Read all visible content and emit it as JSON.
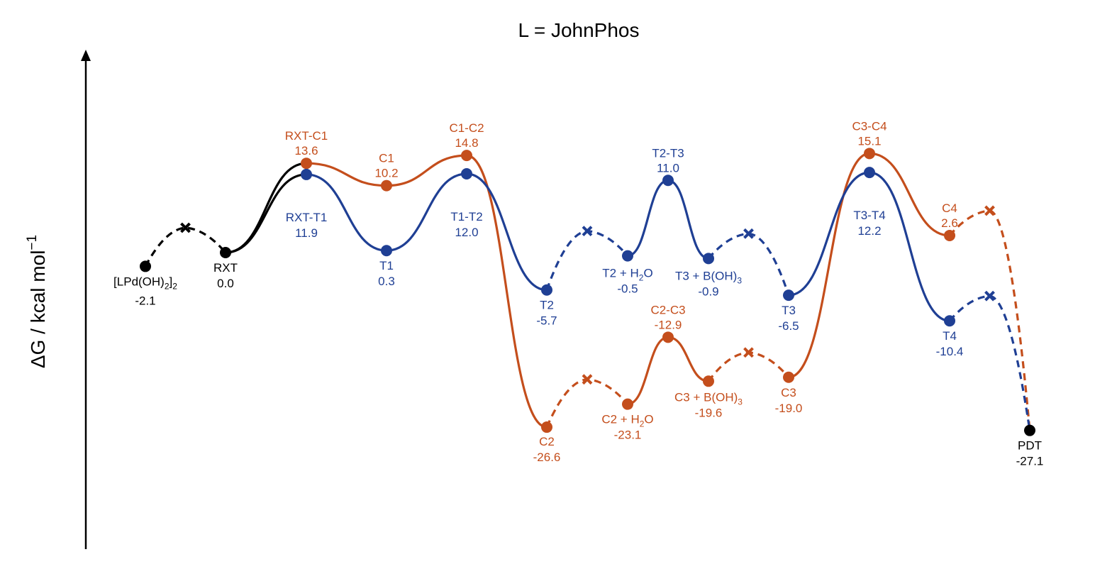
{
  "chart_data": {
    "type": "line",
    "title": "L = JohnPhos",
    "ylabel": "ΔG / kcal mol",
    "ylabel_superscript": "−1",
    "colors": {
      "common": "#000000",
      "C": "#c44e1c",
      "T": "#1f3f94"
    },
    "series": [
      {
        "id": "common",
        "color": "#000000",
        "points": [
          {
            "key": "LPdOH",
            "label": "[LPd(OH)",
            "label_sub": "2",
            "label_tail": "]",
            "label_sub2": "2",
            "value": -2.1,
            "value_label": "-2.1"
          },
          {
            "key": "RXT",
            "label": "RXT",
            "value": 0.0,
            "value_label": "0.0"
          },
          {
            "key": "PDT",
            "label": "PDT",
            "value": -27.1,
            "value_label": "-27.1"
          }
        ]
      },
      {
        "id": "C",
        "color": "#c44e1c",
        "points": [
          {
            "key": "RXT-C1",
            "label": "RXT-C1",
            "value": 13.6,
            "value_label": "13.6"
          },
          {
            "key": "C1",
            "label": "C1",
            "value": 10.2,
            "value_label": "10.2"
          },
          {
            "key": "C1-C2",
            "label": "C1-C2",
            "value": 14.8,
            "value_label": "14.8"
          },
          {
            "key": "C2",
            "label": "C2",
            "value": -26.6,
            "value_label": "-26.6"
          },
          {
            "key": "C2+H2O",
            "label": "C2 + H",
            "label_sub": "2",
            "label_tail": "O",
            "value": -23.1,
            "value_label": "-23.1"
          },
          {
            "key": "C2-C3",
            "label": "C2-C3",
            "value": -12.9,
            "value_label": "-12.9"
          },
          {
            "key": "C3+BOH3",
            "label": "C3 + B(OH)",
            "label_sub": "3",
            "value": -19.6,
            "value_label": "-19.6"
          },
          {
            "key": "C3",
            "label": "C3",
            "value": -19.0,
            "value_label": "-19.0"
          },
          {
            "key": "C3-C4",
            "label": "C3-C4",
            "value": 15.1,
            "value_label": "15.1"
          },
          {
            "key": "C4",
            "label": "C4",
            "value": 2.6,
            "value_label": "2.6"
          }
        ]
      },
      {
        "id": "T",
        "color": "#1f3f94",
        "points": [
          {
            "key": "RXT-T1",
            "label": "RXT-T1",
            "value": 11.9,
            "value_label": "11.9"
          },
          {
            "key": "T1",
            "label": "T1",
            "value": 0.3,
            "value_label": "0.3"
          },
          {
            "key": "T1-T2",
            "label": "T1-T2",
            "value": 12.0,
            "value_label": "12.0"
          },
          {
            "key": "T2",
            "label": "T2",
            "value": -5.7,
            "value_label": "-5.7"
          },
          {
            "key": "T2+H2O",
            "label": "T2 + H",
            "label_sub": "2",
            "label_tail": "O",
            "value": -0.5,
            "value_label": "-0.5"
          },
          {
            "key": "T2-T3",
            "label": "T2-T3",
            "value": 11.0,
            "value_label": "11.0"
          },
          {
            "key": "T3+BOH3",
            "label": "T3 + B(OH)",
            "label_sub": "3",
            "value": -0.9,
            "value_label": "-0.9"
          },
          {
            "key": "T3",
            "label": "T3",
            "value": -6.5,
            "value_label": "-6.5"
          },
          {
            "key": "T3-T4",
            "label": "T3-T4",
            "value": 12.2,
            "value_label": "12.2"
          },
          {
            "key": "T4",
            "label": "T4",
            "value": -10.4,
            "value_label": "-10.4"
          }
        ]
      }
    ],
    "connectors": [
      {
        "color": "#000000",
        "from": "LPdOH",
        "to": "RXT",
        "style": "dashed",
        "marker": "x"
      },
      {
        "color": "#000000",
        "from": "RXT",
        "to": "RXT-C1",
        "style": "solid"
      },
      {
        "color": "#000000",
        "from": "RXT",
        "to": "RXT-T1",
        "style": "solid"
      },
      {
        "color": "#c44e1c",
        "from": "C2",
        "to": "C2+H2O",
        "style": "dashed",
        "marker": "x"
      },
      {
        "color": "#c44e1c",
        "from": "C3+BOH3",
        "to": "C3",
        "style": "dashed",
        "marker": "x"
      },
      {
        "color": "#c44e1c",
        "from": "C4",
        "to": "PDT",
        "style": "dashed",
        "marker": "x"
      },
      {
        "color": "#1f3f94",
        "from": "T2",
        "to": "T2+H2O",
        "style": "dashed",
        "marker": "x"
      },
      {
        "color": "#1f3f94",
        "from": "T3+BOH3",
        "to": "T3",
        "style": "dashed",
        "marker": "x"
      },
      {
        "color": "#1f3f94",
        "from": "T4",
        "to": "PDT",
        "style": "dashed",
        "marker": "x"
      }
    ],
    "ylim": [
      -35,
      22
    ],
    "grid": false,
    "legend": "none"
  }
}
